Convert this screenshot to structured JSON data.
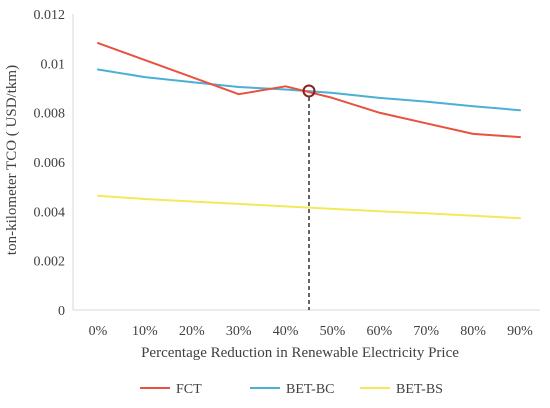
{
  "chart_data": {
    "type": "line",
    "title": "",
    "xlabel": "Percentage Reduction in Renewable Electricity Price",
    "ylabel": "ton-kilometer TCO ( USD/tkm)",
    "x": [
      0,
      10,
      20,
      30,
      40,
      50,
      60,
      70,
      80,
      90
    ],
    "categories": [
      "0%",
      "10%",
      "20%",
      "30%",
      "40%",
      "50%",
      "60%",
      "70%",
      "80%",
      "90%"
    ],
    "ylim": [
      0,
      0.012
    ],
    "yticks": [
      "0",
      "0.002",
      "0.004",
      "0.006",
      "0.008",
      "0.01",
      "0.012"
    ],
    "ytick_values": [
      0,
      0.002,
      0.004,
      0.006,
      0.008,
      0.01,
      0.012
    ],
    "grid": false,
    "legend_position": "bottom",
    "series": [
      {
        "name": "FCT",
        "color": "#e8523f",
        "values": [
          0.01082,
          0.01013,
          0.00944,
          0.00875,
          0.00907,
          0.0086,
          0.008,
          0.00757,
          0.00714,
          0.00701
        ]
      },
      {
        "name": "BET-BC",
        "color": "#4bafd6",
        "values": [
          0.00975,
          0.00944,
          0.00924,
          0.00904,
          0.00894,
          0.0088,
          0.0086,
          0.00845,
          0.00826,
          0.0081
        ]
      },
      {
        "name": "BET-BS",
        "color": "#f2ea5a",
        "values": [
          0.00463,
          0.0045,
          0.0044,
          0.0043,
          0.0042,
          0.0041,
          0.004,
          0.00392,
          0.00382,
          0.00372
        ]
      }
    ],
    "annotation": {
      "type": "intersection",
      "x": 45,
      "y": 0.00888,
      "marker_color": "#8b2020"
    }
  }
}
